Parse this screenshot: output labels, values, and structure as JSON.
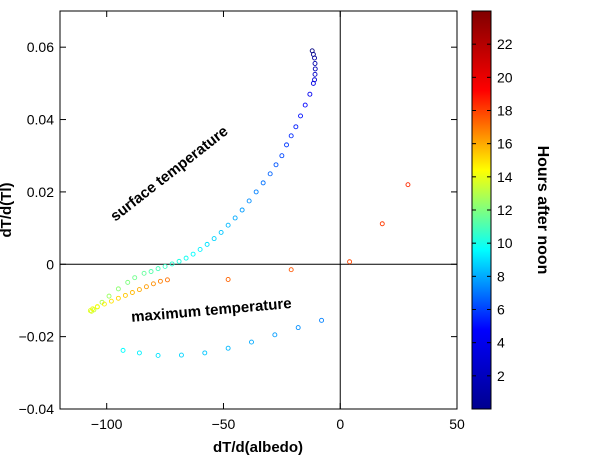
{
  "chart_data": {
    "type": "scatter",
    "xlabel": "dT/d(albedo)",
    "ylabel": "dT/d(Tl)",
    "xlim": [
      -120,
      50
    ],
    "ylim": [
      -0.04,
      0.07
    ],
    "xticks": [
      -100,
      -50,
      0,
      50
    ],
    "yticks": [
      -0.04,
      -0.02,
      0,
      0.02,
      0.04,
      0.06
    ],
    "xtick_labels": [
      "−100",
      "−50",
      "0",
      "50"
    ],
    "ytick_labels": [
      "−0.04",
      "−0.02",
      "0",
      "0.02",
      "0.04",
      "0.06"
    ],
    "grid": false,
    "reference_lines": {
      "x": 0,
      "y": 0
    },
    "marker": "open-circle",
    "colorbar": {
      "label": "Hours after noon",
      "min": 0,
      "max": 24,
      "ticks": [
        2,
        4,
        6,
        8,
        10,
        12,
        14,
        16,
        18,
        20,
        22
      ],
      "colormap": "jet",
      "colors": [
        "#00008f",
        "#0000ff",
        "#00ffff",
        "#ffff00",
        "#ff0000",
        "#800000"
      ]
    },
    "annotations": [
      {
        "text": "surface temperature",
        "x": -72,
        "y": 0.024,
        "rotation": -38
      },
      {
        "text": "maximum temperature",
        "x": -55,
        "y": -0.014,
        "rotation": -5
      }
    ],
    "series": [
      {
        "points": [
          {
            "x": -12,
            "y": 0.059,
            "h": 0.0
          },
          {
            "x": -11.5,
            "y": 0.058,
            "h": 0.33
          },
          {
            "x": -11,
            "y": 0.057,
            "h": 0.67
          },
          {
            "x": -10.8,
            "y": 0.0555,
            "h": 1.0
          },
          {
            "x": -10.7,
            "y": 0.054,
            "h": 1.33
          },
          {
            "x": -10.8,
            "y": 0.0525,
            "h": 1.67
          },
          {
            "x": -11,
            "y": 0.051,
            "h": 2.0
          },
          {
            "x": -11.5,
            "y": 0.05,
            "h": 2.33
          },
          {
            "x": -13,
            "y": 0.047,
            "h": 2.67
          },
          {
            "x": -15,
            "y": 0.044,
            "h": 3.0
          },
          {
            "x": -17,
            "y": 0.041,
            "h": 3.33
          },
          {
            "x": -19,
            "y": 0.038,
            "h": 3.67
          },
          {
            "x": -21,
            "y": 0.0355,
            "h": 4.0
          },
          {
            "x": -23,
            "y": 0.033,
            "h": 4.33
          },
          {
            "x": -25,
            "y": 0.03,
            "h": 4.67
          },
          {
            "x": -27.5,
            "y": 0.0275,
            "h": 5.0
          },
          {
            "x": -30,
            "y": 0.025,
            "h": 5.33
          },
          {
            "x": -33,
            "y": 0.0225,
            "h": 5.67
          },
          {
            "x": -36,
            "y": 0.02,
            "h": 6.0
          },
          {
            "x": -39,
            "y": 0.0175,
            "h": 6.33
          },
          {
            "x": -42,
            "y": 0.015,
            "h": 6.67
          },
          {
            "x": -45,
            "y": 0.0128,
            "h": 7.0
          },
          {
            "x": -48,
            "y": 0.0108,
            "h": 7.33
          },
          {
            "x": -51,
            "y": 0.0088,
            "h": 7.67
          },
          {
            "x": -54,
            "y": 0.0071,
            "h": 8.0
          },
          {
            "x": -57,
            "y": 0.0055,
            "h": 8.33
          },
          {
            "x": -60,
            "y": 0.0041,
            "h": 8.67
          },
          {
            "x": -63,
            "y": 0.0028,
            "h": 9.0
          },
          {
            "x": -66,
            "y": 0.0017,
            "h": 9.33
          },
          {
            "x": -69,
            "y": 0.0008,
            "h": 9.67
          },
          {
            "x": -72,
            "y": 0.0001,
            "h": 10.0
          },
          {
            "x": -75,
            "y": -0.0006,
            "h": 10.33
          },
          {
            "x": -78,
            "y": -0.0012,
            "h": 10.67
          },
          {
            "x": -81,
            "y": -0.002,
            "h": 11.0
          },
          {
            "x": -84,
            "y": -0.0025,
            "h": 11.33
          },
          {
            "x": -88,
            "y": -0.0037,
            "h": 11.67
          },
          {
            "x": -91,
            "y": -0.005,
            "h": 12.0
          },
          {
            "x": -95,
            "y": -0.0068,
            "h": 12.33
          },
          {
            "x": -99,
            "y": -0.0088,
            "h": 12.67
          },
          {
            "x": -102,
            "y": -0.0105,
            "h": 13.0
          },
          {
            "x": -104,
            "y": -0.0118,
            "h": 13.33
          },
          {
            "x": -105.5,
            "y": -0.0126,
            "h": 13.67
          },
          {
            "x": -106.5,
            "y": -0.013,
            "h": 14.0
          },
          {
            "x": -107,
            "y": -0.0128,
            "h": 14.33
          },
          {
            "x": -106,
            "y": -0.0123,
            "h": 14.67
          },
          {
            "x": -104,
            "y": -0.0117,
            "h": 15.0
          },
          {
            "x": -101,
            "y": -0.011,
            "h": 15.33
          },
          {
            "x": -98,
            "y": -0.0102,
            "h": 15.67
          },
          {
            "x": -95,
            "y": -0.0094,
            "h": 16.0
          },
          {
            "x": -92,
            "y": -0.0086,
            "h": 16.33
          },
          {
            "x": -89,
            "y": -0.0078,
            "h": 16.67
          },
          {
            "x": -86,
            "y": -0.007,
            "h": 17.0
          },
          {
            "x": -83,
            "y": -0.0062,
            "h": 17.33
          },
          {
            "x": -80,
            "y": -0.0054,
            "h": 17.67
          },
          {
            "x": -77,
            "y": -0.0047,
            "h": 18.0
          },
          {
            "x": -74,
            "y": -0.0043,
            "h": 18.33
          },
          {
            "x": -48,
            "y": -0.0042,
            "h": 18.67
          },
          {
            "x": -21,
            "y": -0.0015,
            "h": 19.0
          },
          {
            "x": 4,
            "y": 0.0007,
            "h": 19.33
          },
          {
            "x": 18,
            "y": 0.0112,
            "h": 19.67
          },
          {
            "x": 29,
            "y": 0.022,
            "h": 20.0
          },
          {
            "x": -8,
            "y": -0.0155,
            "h": 6.0
          },
          {
            "x": -18,
            "y": -0.0175,
            "h": 6.33
          },
          {
            "x": -28,
            "y": -0.0195,
            "h": 6.67
          },
          {
            "x": -38,
            "y": -0.0215,
            "h": 7.0
          },
          {
            "x": -48,
            "y": -0.0232,
            "h": 7.33
          },
          {
            "x": -58,
            "y": -0.0245,
            "h": 7.67
          },
          {
            "x": -68,
            "y": -0.0251,
            "h": 8.0
          },
          {
            "x": -78,
            "y": -0.0252,
            "h": 8.33
          },
          {
            "x": -86,
            "y": -0.0245,
            "h": 8.67
          },
          {
            "x": -93,
            "y": -0.0238,
            "h": 9.0
          }
        ]
      }
    ]
  }
}
